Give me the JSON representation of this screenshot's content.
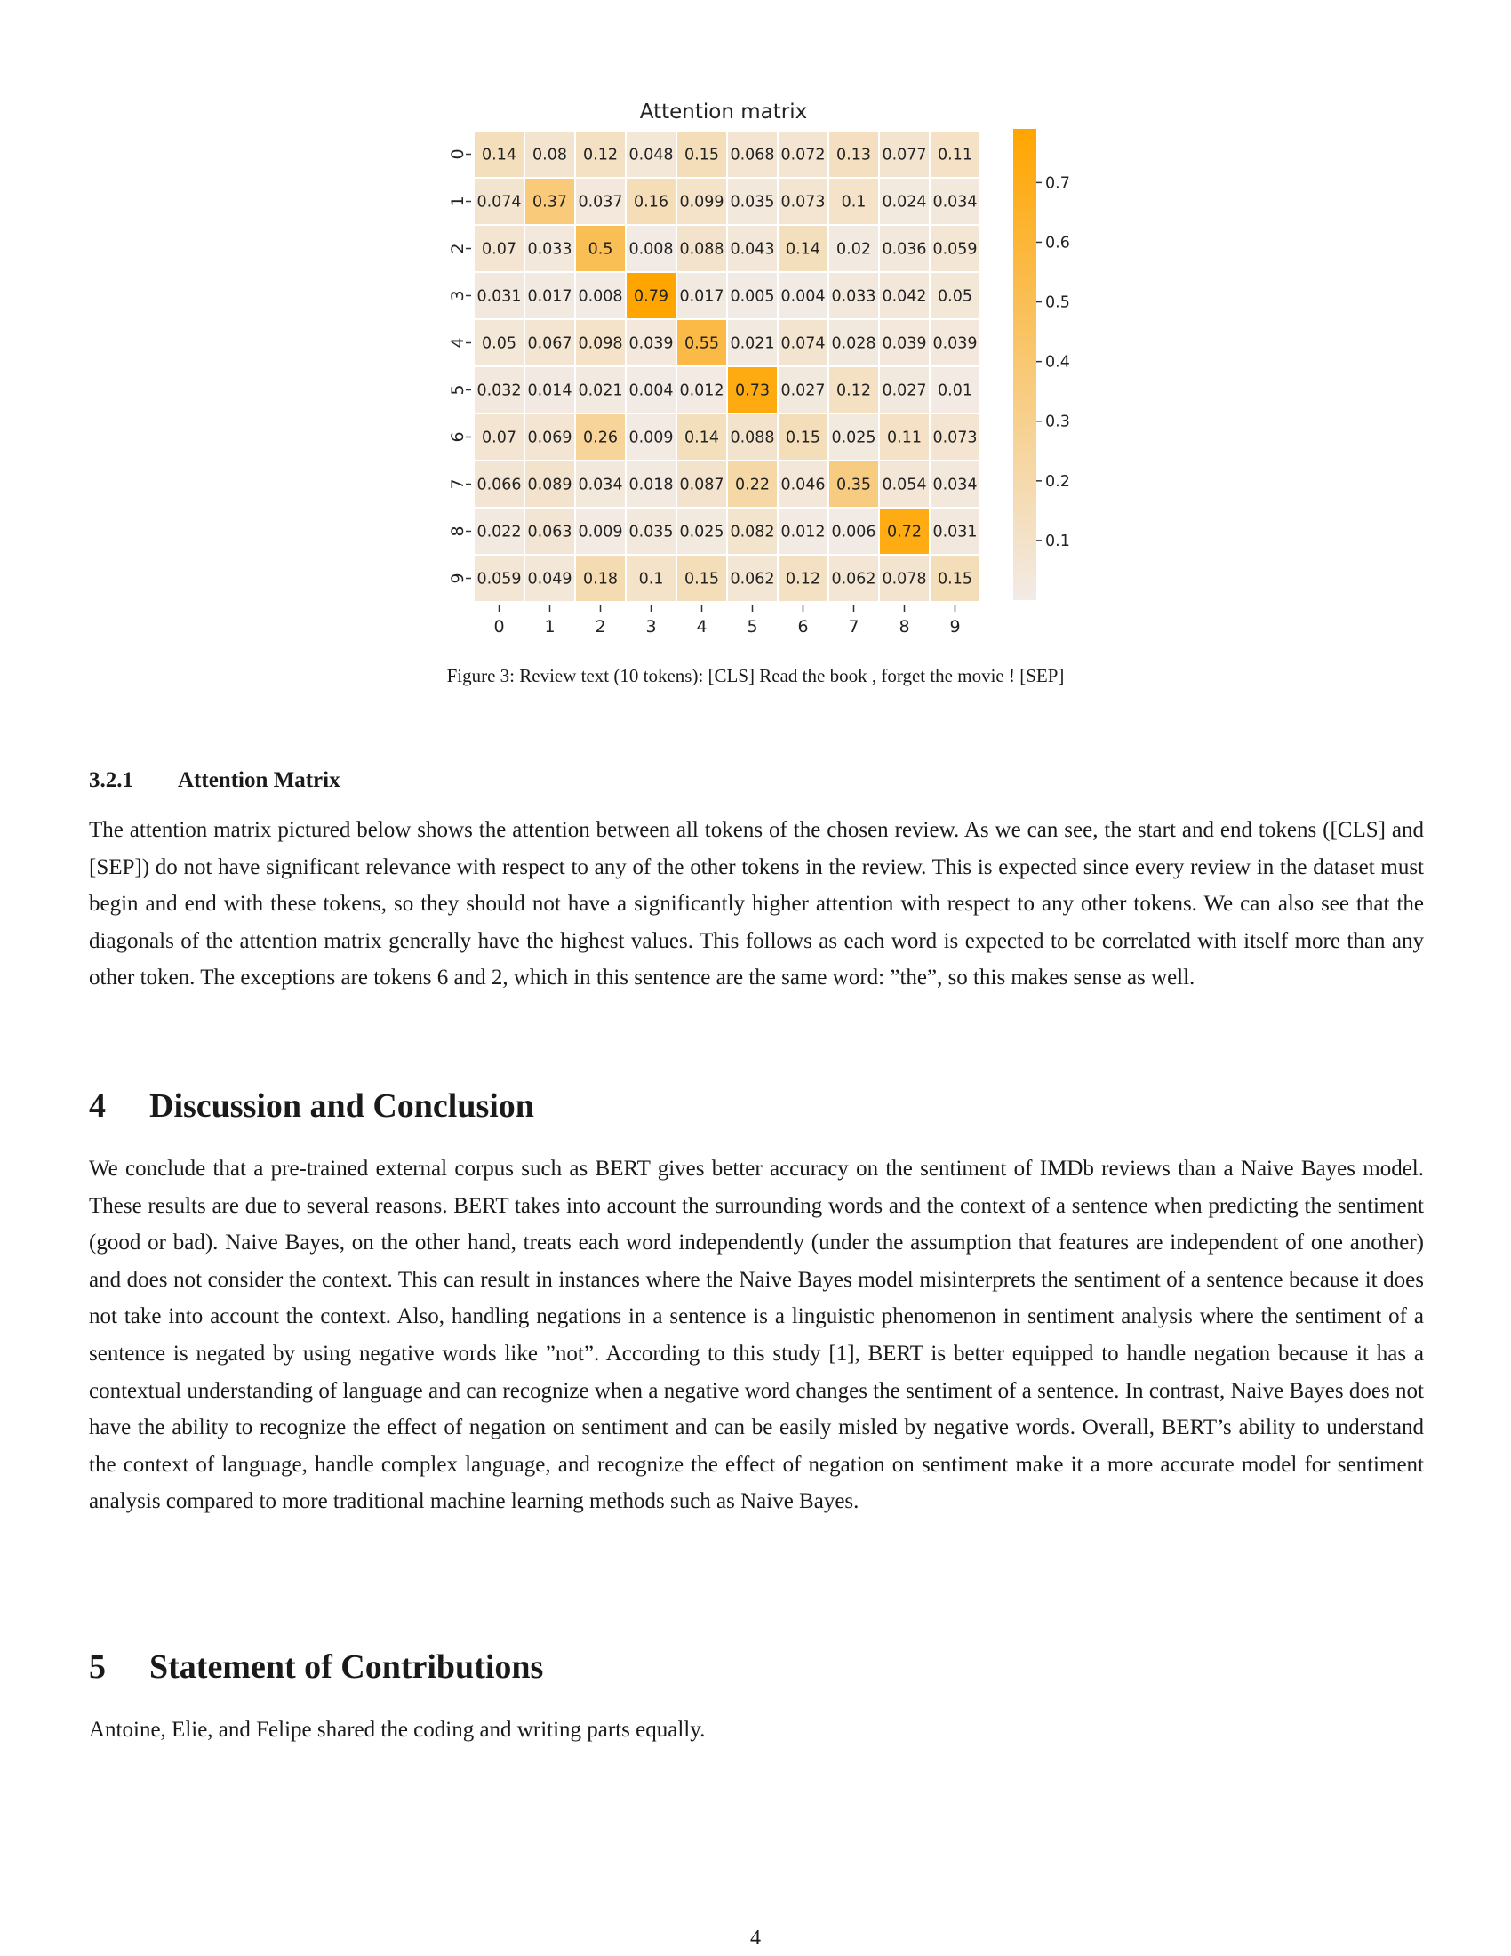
{
  "figure": {
    "caption": "Figure 3: Review text (10 tokens): [CLS] Read the book , forget the movie ! [SEP]"
  },
  "chart_data": {
    "type": "heatmap",
    "title": "Attention matrix",
    "x_tick_labels": [
      "0",
      "1",
      "2",
      "3",
      "4",
      "5",
      "6",
      "7",
      "8",
      "9"
    ],
    "y_tick_labels": [
      "0",
      "1",
      "2",
      "3",
      "4",
      "5",
      "6",
      "7",
      "8",
      "9"
    ],
    "values": [
      [
        "0.14",
        "0.08",
        "0.12",
        "0.048",
        "0.15",
        "0.068",
        "0.072",
        "0.13",
        "0.077",
        "0.11"
      ],
      [
        "0.074",
        "0.37",
        "0.037",
        "0.16",
        "0.099",
        "0.035",
        "0.073",
        "0.1",
        "0.024",
        "0.034"
      ],
      [
        "0.07",
        "0.033",
        "0.5",
        "0.008",
        "0.088",
        "0.043",
        "0.14",
        "0.02",
        "0.036",
        "0.059"
      ],
      [
        "0.031",
        "0.017",
        "0.008",
        "0.79",
        "0.017",
        "0.005",
        "0.004",
        "0.033",
        "0.042",
        "0.05"
      ],
      [
        "0.05",
        "0.067",
        "0.098",
        "0.039",
        "0.55",
        "0.021",
        "0.074",
        "0.028",
        "0.039",
        "0.039"
      ],
      [
        "0.032",
        "0.014",
        "0.021",
        "0.004",
        "0.012",
        "0.73",
        "0.027",
        "0.12",
        "0.027",
        "0.01"
      ],
      [
        "0.07",
        "0.069",
        "0.26",
        "0.009",
        "0.14",
        "0.088",
        "0.15",
        "0.025",
        "0.11",
        "0.073"
      ],
      [
        "0.066",
        "0.089",
        "0.034",
        "0.018",
        "0.087",
        "0.22",
        "0.046",
        "0.35",
        "0.054",
        "0.034"
      ],
      [
        "0.022",
        "0.063",
        "0.009",
        "0.035",
        "0.025",
        "0.082",
        "0.012",
        "0.006",
        "0.72",
        "0.031"
      ],
      [
        "0.059",
        "0.049",
        "0.18",
        "0.1",
        "0.15",
        "0.062",
        "0.12",
        "0.062",
        "0.078",
        "0.15"
      ]
    ],
    "colorbar": {
      "ticks": [
        "0.1",
        "0.2",
        "0.3",
        "0.4",
        "0.5",
        "0.6",
        "0.7"
      ],
      "range": [
        0.0,
        0.79
      ],
      "color_low": "#f2ebe6",
      "color_high": "#ffa500"
    }
  },
  "subsection": {
    "number": "3.2.1",
    "title": "Attention Matrix",
    "text": "The attention matrix pictured below shows the attention between all tokens of the chosen review. As we can see, the start and end tokens ([CLS] and [SEP]) do not have significant relevance with respect to any of the other tokens in the review. This is expected since every review in the dataset must begin and end with these tokens, so they should not have a significantly higher attention with respect to any other tokens. We can also see that the diagonals of the attention matrix generally have the highest values. This follows as each word is expected to be correlated with itself more than any other token. The exceptions are tokens 6 and 2, which in this sentence are the same word: ”the”, so this makes sense as well."
  },
  "section4": {
    "number": "4",
    "title": "Discussion and Conclusion",
    "text": "We conclude that a pre-trained external corpus such as BERT gives better accuracy on the sentiment of IMDb reviews than a Naive Bayes model. These results are due to several reasons. BERT takes into account the surrounding words and the context of a sentence when predicting the sentiment (good or bad). Naive Bayes, on the other hand, treats each word independently (under the assumption that features are independent of one another) and does not consider the context. This can result in instances where the Naive Bayes model misinterprets the sentiment of a sentence because it does not take into account the context. Also, handling negations in a sentence is a linguistic phenomenon in sentiment analysis where the sentiment of a sentence is negated by using negative words like ”not”. According to this study [1], BERT is better equipped to handle negation because it has a contextual understanding of language and can recognize when a negative word changes the sentiment of a sentence. In contrast, Naive Bayes does not have the ability to recognize the effect of negation on sentiment and can be easily misled by negative words. Overall, BERT’s ability to understand the context of language, handle complex language, and recognize the effect of negation on sentiment make it a more accurate model for sentiment analysis compared to more traditional machine learning methods such as Naive Bayes."
  },
  "section5": {
    "number": "5",
    "title": "Statement of Contributions",
    "text": "Antoine, Elie, and Felipe shared the coding and writing parts equally."
  },
  "page_number": "4"
}
